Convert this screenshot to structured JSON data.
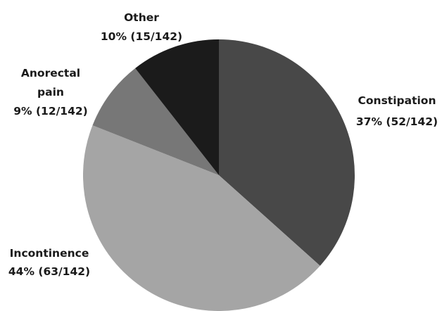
{
  "chart_data": {
    "type": "pie",
    "start_angle_deg": 0,
    "direction": "clockwise",
    "slices": [
      {
        "label": "Constipation",
        "value_text": "37% (52/142)",
        "value": 52,
        "percent": 37,
        "color": "#484848"
      },
      {
        "label": "Incontinence",
        "value_text": "44% (63/142)",
        "value": 63,
        "percent": 44,
        "color": "#a5a5a5"
      },
      {
        "label": "Anorectal pain",
        "label_lines": [
          "Anorectal",
          "pain"
        ],
        "value_text": "9% (12/142)",
        "value": 12,
        "percent": 9,
        "color": "#777777"
      },
      {
        "label": "Other",
        "value_text": "10% (15/142)",
        "value": 15,
        "percent": 10,
        "color": "#1b1b1b"
      }
    ],
    "total": 142
  }
}
